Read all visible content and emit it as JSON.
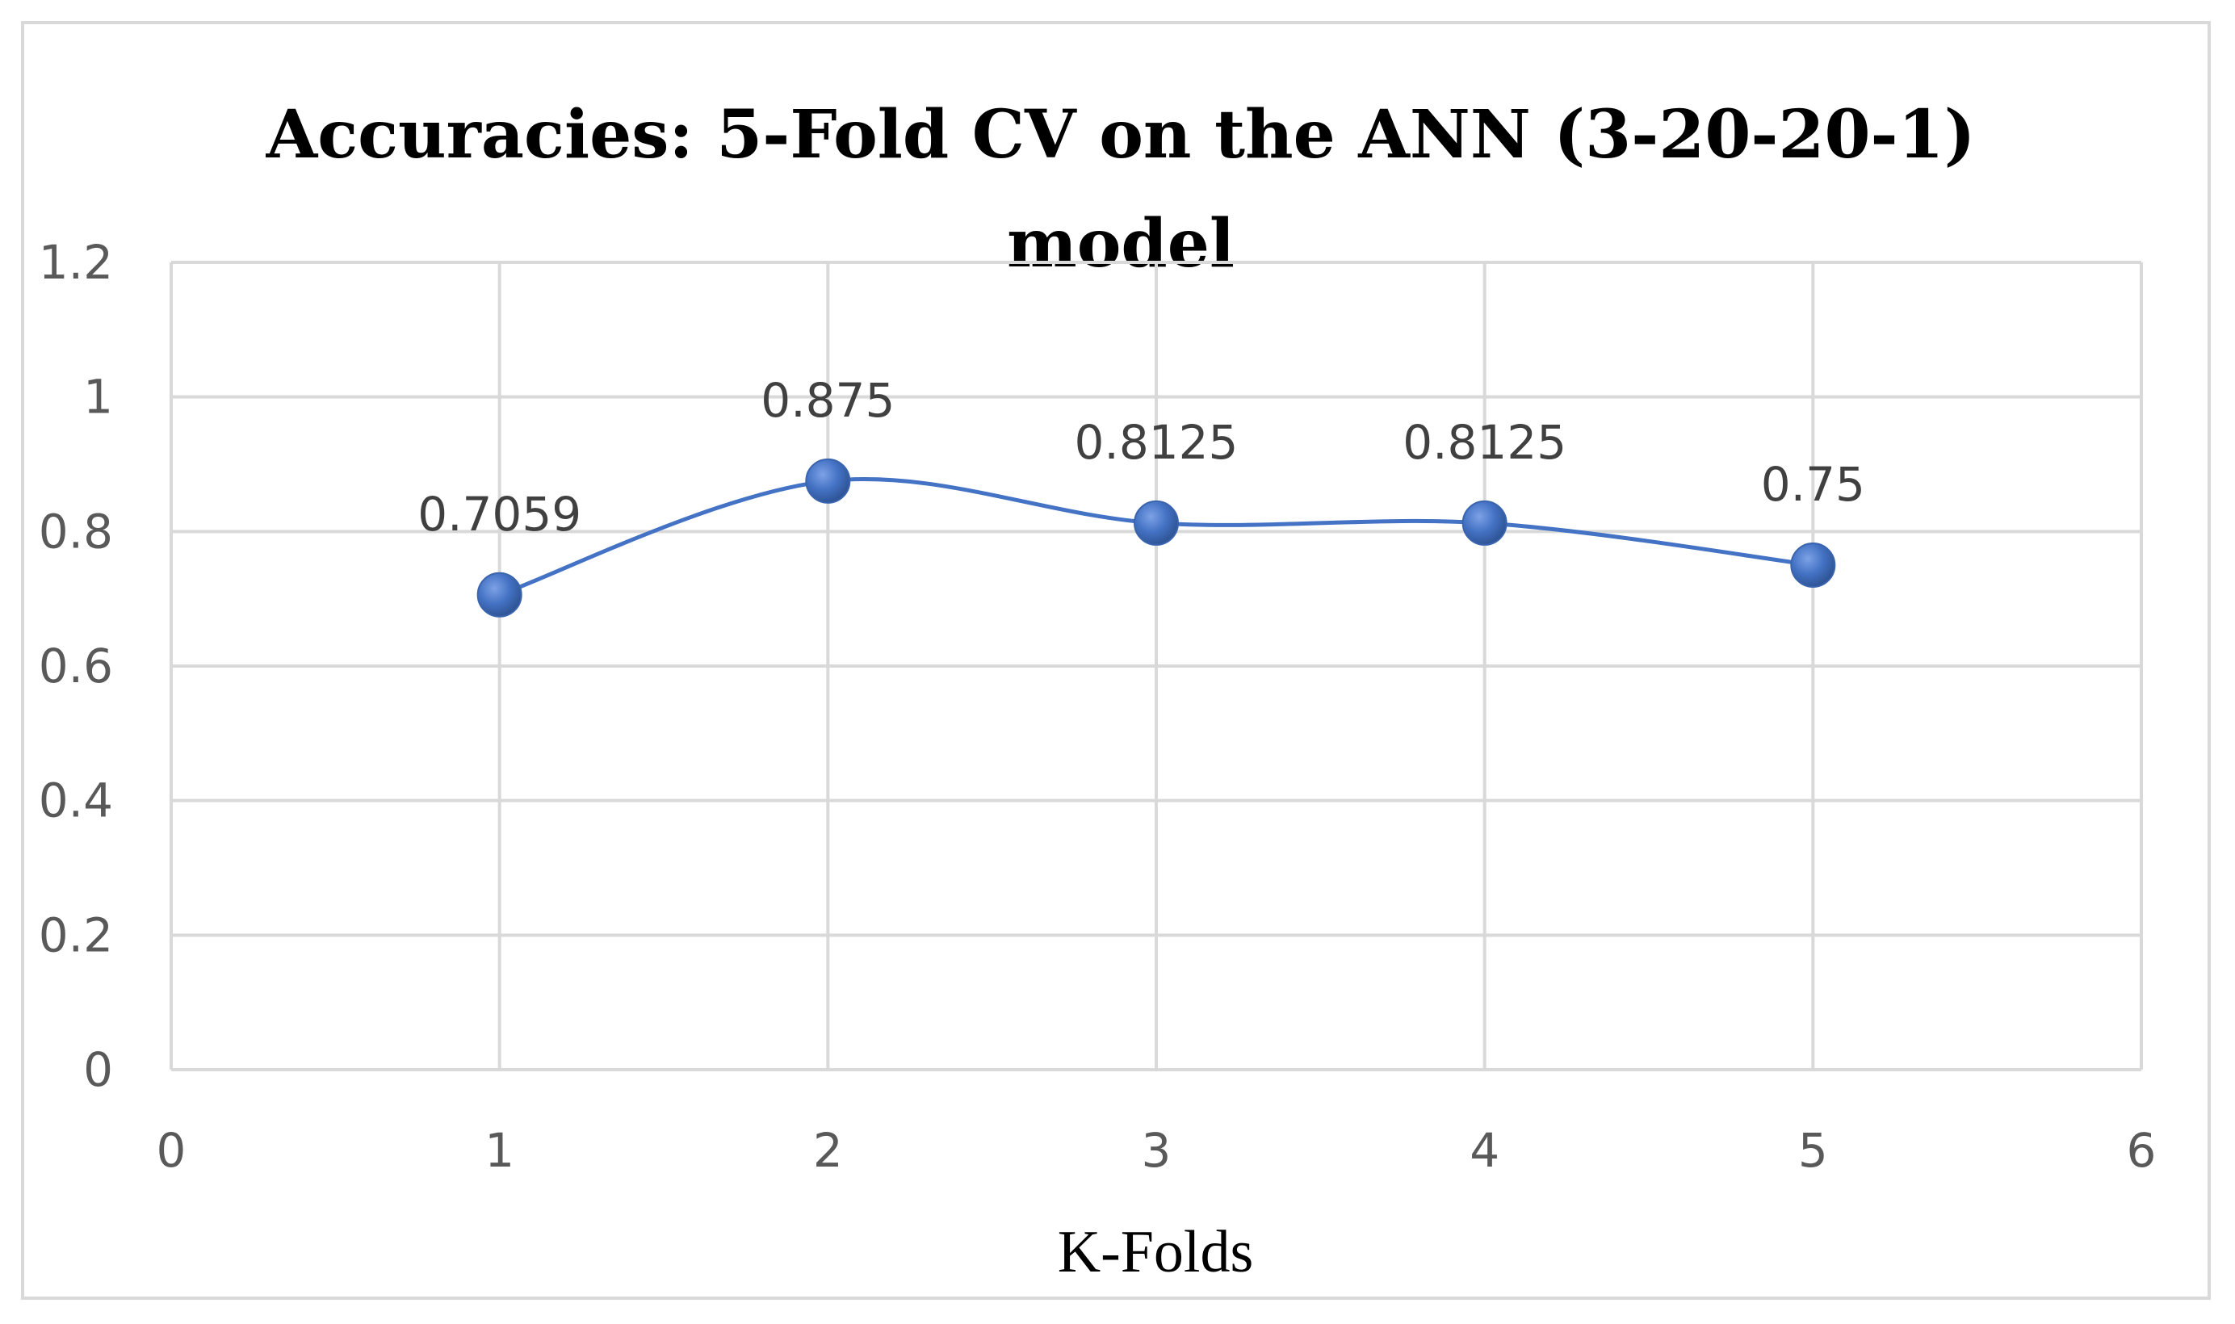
{
  "chart_data": {
    "type": "line",
    "title": "Accuracies: 5-Fold CV on the ANN (3-20-20-1) model",
    "title_lines": [
      "Accuracies: 5-Fold CV on the ANN (3-20-20-1)",
      "model"
    ],
    "xlabel": "K-Folds",
    "ylabel": "",
    "xlim": [
      0,
      6
    ],
    "ylim": [
      0,
      1.2
    ],
    "x_ticks": [
      "0",
      "1",
      "2",
      "3",
      "4",
      "5",
      "6"
    ],
    "y_ticks": [
      "0",
      "0.2",
      "0.4",
      "0.6",
      "0.8",
      "1",
      "1.2"
    ],
    "x": [
      1,
      2,
      3,
      4,
      5
    ],
    "y": [
      0.7059,
      0.875,
      0.8125,
      0.8125,
      0.75
    ],
    "data_labels": [
      "0.7059",
      "0.875",
      "0.8125",
      "0.8125",
      "0.75"
    ],
    "smooth": true,
    "grid": true,
    "legend": "none",
    "series_color": "#4472c4",
    "grid_color": "#d9d9d9"
  }
}
